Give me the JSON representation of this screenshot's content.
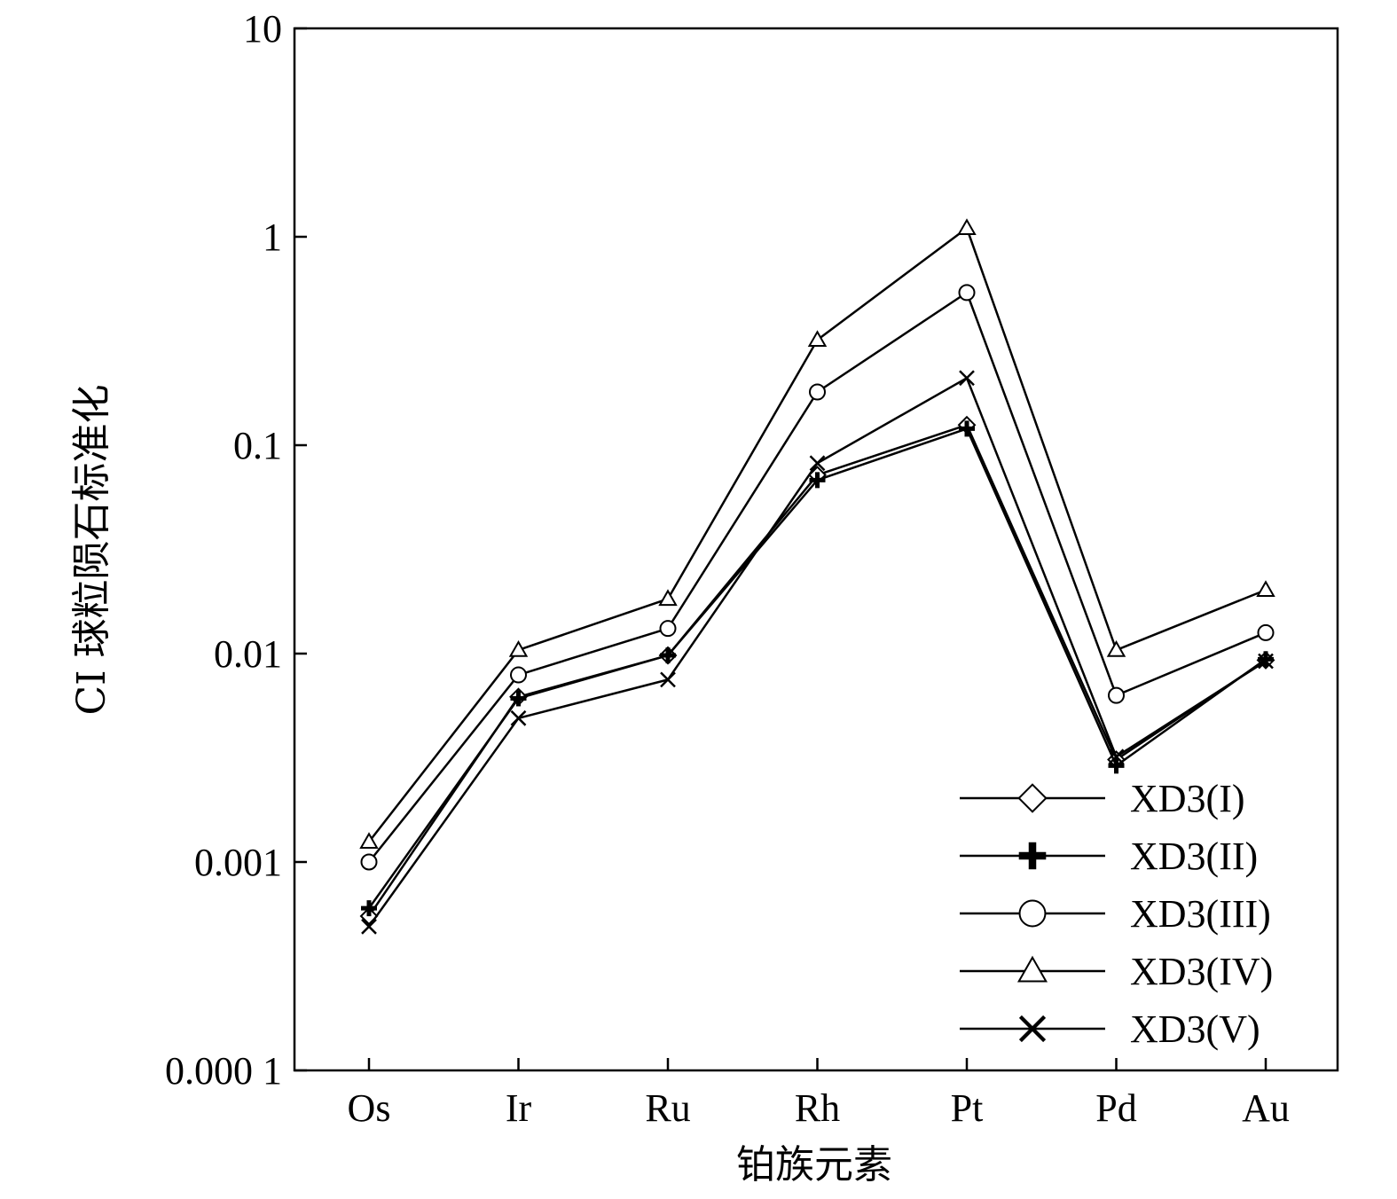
{
  "chart_data": {
    "type": "line",
    "title": "",
    "xlabel": "铂族元素",
    "ylabel": "CI 球粒陨石标准化",
    "y_scale": "log",
    "ylim": [
      0.0001,
      10
    ],
    "y_ticks": [
      {
        "value": 10,
        "label": "10"
      },
      {
        "value": 1,
        "label": "1"
      },
      {
        "value": 0.1,
        "label": "0.1"
      },
      {
        "value": 0.01,
        "label": "0.01"
      },
      {
        "value": 0.001,
        "label": "0.001"
      },
      {
        "value": 0.0001,
        "label": "0.000 1"
      }
    ],
    "categories": [
      "Os",
      "Ir",
      "Ru",
      "Rh",
      "Pt",
      "Pd",
      "Au"
    ],
    "grid": false,
    "legend_position": "bottom-right",
    "series": [
      {
        "name": "XD3(I)",
        "marker": "diamond",
        "values": [
          0.00055,
          0.0062,
          0.0098,
          0.072,
          0.125,
          0.0031,
          0.0093
        ]
      },
      {
        "name": "XD3(II)",
        "marker": "plus",
        "values": [
          0.0006,
          0.0061,
          0.0098,
          0.068,
          0.12,
          0.0029,
          0.0094
        ]
      },
      {
        "name": "XD3(III)",
        "marker": "circle",
        "values": [
          0.001,
          0.0079,
          0.0132,
          0.18,
          0.54,
          0.0063,
          0.0126
        ]
      },
      {
        "name": "XD3(IV)",
        "marker": "triangle",
        "values": [
          0.00125,
          0.0104,
          0.0183,
          0.32,
          1.1,
          0.0104,
          0.0202
        ]
      },
      {
        "name": "XD3(V)",
        "marker": "cross",
        "values": [
          0.00049,
          0.0049,
          0.0075,
          0.082,
          0.21,
          0.0032,
          0.0092
        ]
      }
    ]
  }
}
